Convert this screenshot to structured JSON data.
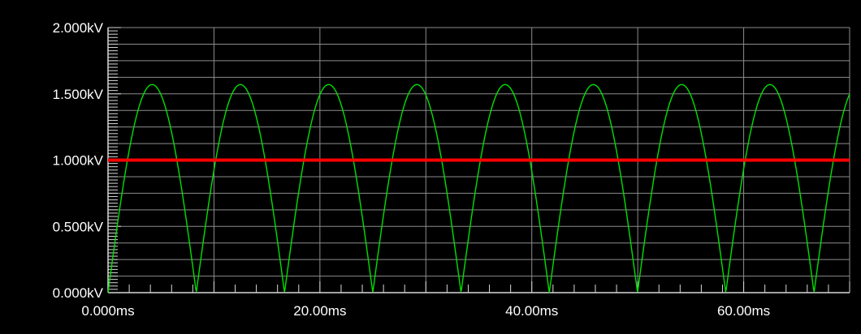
{
  "chart_data": {
    "type": "line",
    "title": "",
    "xlabel": "",
    "ylabel": "",
    "x_unit": "ms",
    "y_unit": "kV",
    "xlim": [
      0,
      70
    ],
    "ylim": [
      0,
      2
    ],
    "x_major_ticks": [
      0,
      10,
      20,
      30,
      40,
      50,
      60
    ],
    "x_tick_labels": [
      "0.000ms",
      "20.00ms",
      "40.00ms",
      "60.00ms"
    ],
    "x_tick_label_values": [
      0,
      20,
      40,
      60
    ],
    "y_major_ticks": [
      0,
      0.5,
      1.0,
      1.5,
      2.0
    ],
    "y_tick_labels": [
      "0.000kV",
      "0.500kV",
      "1.000kV",
      "1.500kV",
      "2.000kV"
    ],
    "grid": true,
    "series": [
      {
        "color": "#00e000",
        "description": "full-wave rectified sine",
        "amplitude": 1.57,
        "period_ms": 8.33,
        "phase_ms": 0,
        "x": [
          0,
          1.04,
          2.08,
          3.12,
          4.17,
          5.21,
          6.25,
          7.29,
          8.33,
          9.37,
          10.42,
          11.46,
          12.5,
          13.54,
          14.58,
          15.62,
          16.67,
          17.71,
          18.75,
          19.79,
          20.83,
          21.87,
          22.92,
          23.96,
          25.0,
          26.04,
          27.08,
          28.12,
          29.17,
          30.21,
          31.25,
          32.29,
          33.33,
          34.37,
          35.42,
          36.46,
          37.5,
          38.54,
          39.58,
          40.62,
          41.67,
          42.71,
          43.75,
          44.79,
          45.83,
          46.87,
          47.92,
          48.96,
          50.0,
          51.04,
          52.08,
          53.12,
          54.17,
          55.21,
          56.25,
          57.29,
          58.33,
          59.37,
          60.42,
          61.46,
          62.5,
          63.54,
          64.58,
          65.62,
          66.67,
          67.71,
          68.75,
          69.79,
          70.0
        ],
        "y": [
          0.0,
          0.6,
          1.11,
          1.45,
          1.57,
          1.45,
          1.11,
          0.6,
          0.0,
          0.6,
          1.11,
          1.45,
          1.57,
          1.45,
          1.11,
          0.6,
          0.0,
          0.6,
          1.11,
          1.45,
          1.57,
          1.45,
          1.11,
          0.6,
          0.0,
          0.6,
          1.11,
          1.45,
          1.57,
          1.45,
          1.11,
          0.6,
          0.0,
          0.6,
          1.11,
          1.45,
          1.57,
          1.45,
          1.11,
          0.6,
          0.0,
          0.6,
          1.11,
          1.45,
          1.57,
          1.45,
          1.11,
          0.6,
          0.0,
          0.6,
          1.11,
          1.45,
          1.57,
          1.45,
          1.11,
          0.6,
          0.0,
          0.6,
          1.11,
          1.45,
          1.57,
          1.45,
          1.11,
          0.6,
          0.0,
          0.6,
          1.11,
          1.45,
          1.5
        ]
      }
    ],
    "reference_lines": [
      {
        "y": 1.0,
        "color": "#ff0000",
        "description": "horizontal threshold line"
      }
    ]
  },
  "colors": {
    "background": "#000000",
    "grid": "#8c8c8c",
    "axis": "#d8d8d8",
    "text": "#ffffff",
    "series": "#00e000",
    "reference": "#ff0000"
  }
}
